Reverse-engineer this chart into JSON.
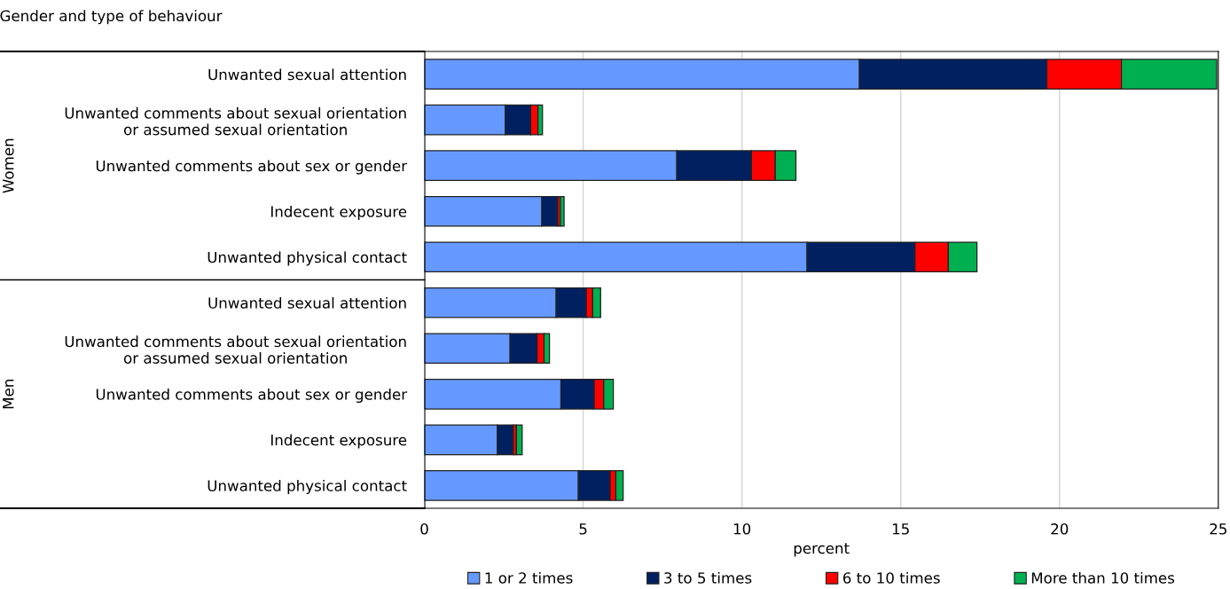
{
  "chart_data": {
    "type": "bar",
    "orientation": "horizontal",
    "stacked": true,
    "title": "Gender and type of behaviour",
    "xlabel": "percent",
    "categories": [
      "Unwanted sexual attention",
      "Unwanted comments about sexual orientation\nor assumed sexual orientation",
      "Unwanted comments about sex or gender",
      "Indecent exposure",
      "Unwanted physical contact",
      "Unwanted sexual attention",
      "Unwanted comments about sexual orientation\nor assumed sexual orientation",
      "Unwanted comments about sex or gender",
      "Indecent exposure",
      "Unwanted physical contact"
    ],
    "series": [
      {
        "name": "1 or 2 times",
        "color": "#6699ff",
        "values": [
          13.7,
          2.55,
          7.95,
          3.7,
          12.05,
          4.15,
          2.7,
          4.3,
          2.3,
          4.85
        ]
      },
      {
        "name": "3 to 5 times",
        "color": "#002060",
        "values": [
          5.9,
          0.8,
          2.35,
          0.5,
          3.4,
          0.95,
          0.85,
          1.05,
          0.5,
          1.0
        ]
      },
      {
        "name": "6 to 10 times",
        "color": "#ff0000",
        "values": [
          2.35,
          0.23,
          0.75,
          0.08,
          1.05,
          0.2,
          0.22,
          0.3,
          0.1,
          0.18
        ]
      },
      {
        "name": "More than 10 times",
        "color": "#00b050",
        "values": [
          3.0,
          0.14,
          0.65,
          0.12,
          0.9,
          0.25,
          0.17,
          0.3,
          0.18,
          0.23
        ]
      }
    ],
    "xlim": [
      0,
      25
    ],
    "xticks": [
      0,
      5,
      10,
      15,
      20,
      25
    ],
    "grid": "x",
    "legend": "bottom",
    "annotations": [
      "Women",
      "Men"
    ]
  }
}
